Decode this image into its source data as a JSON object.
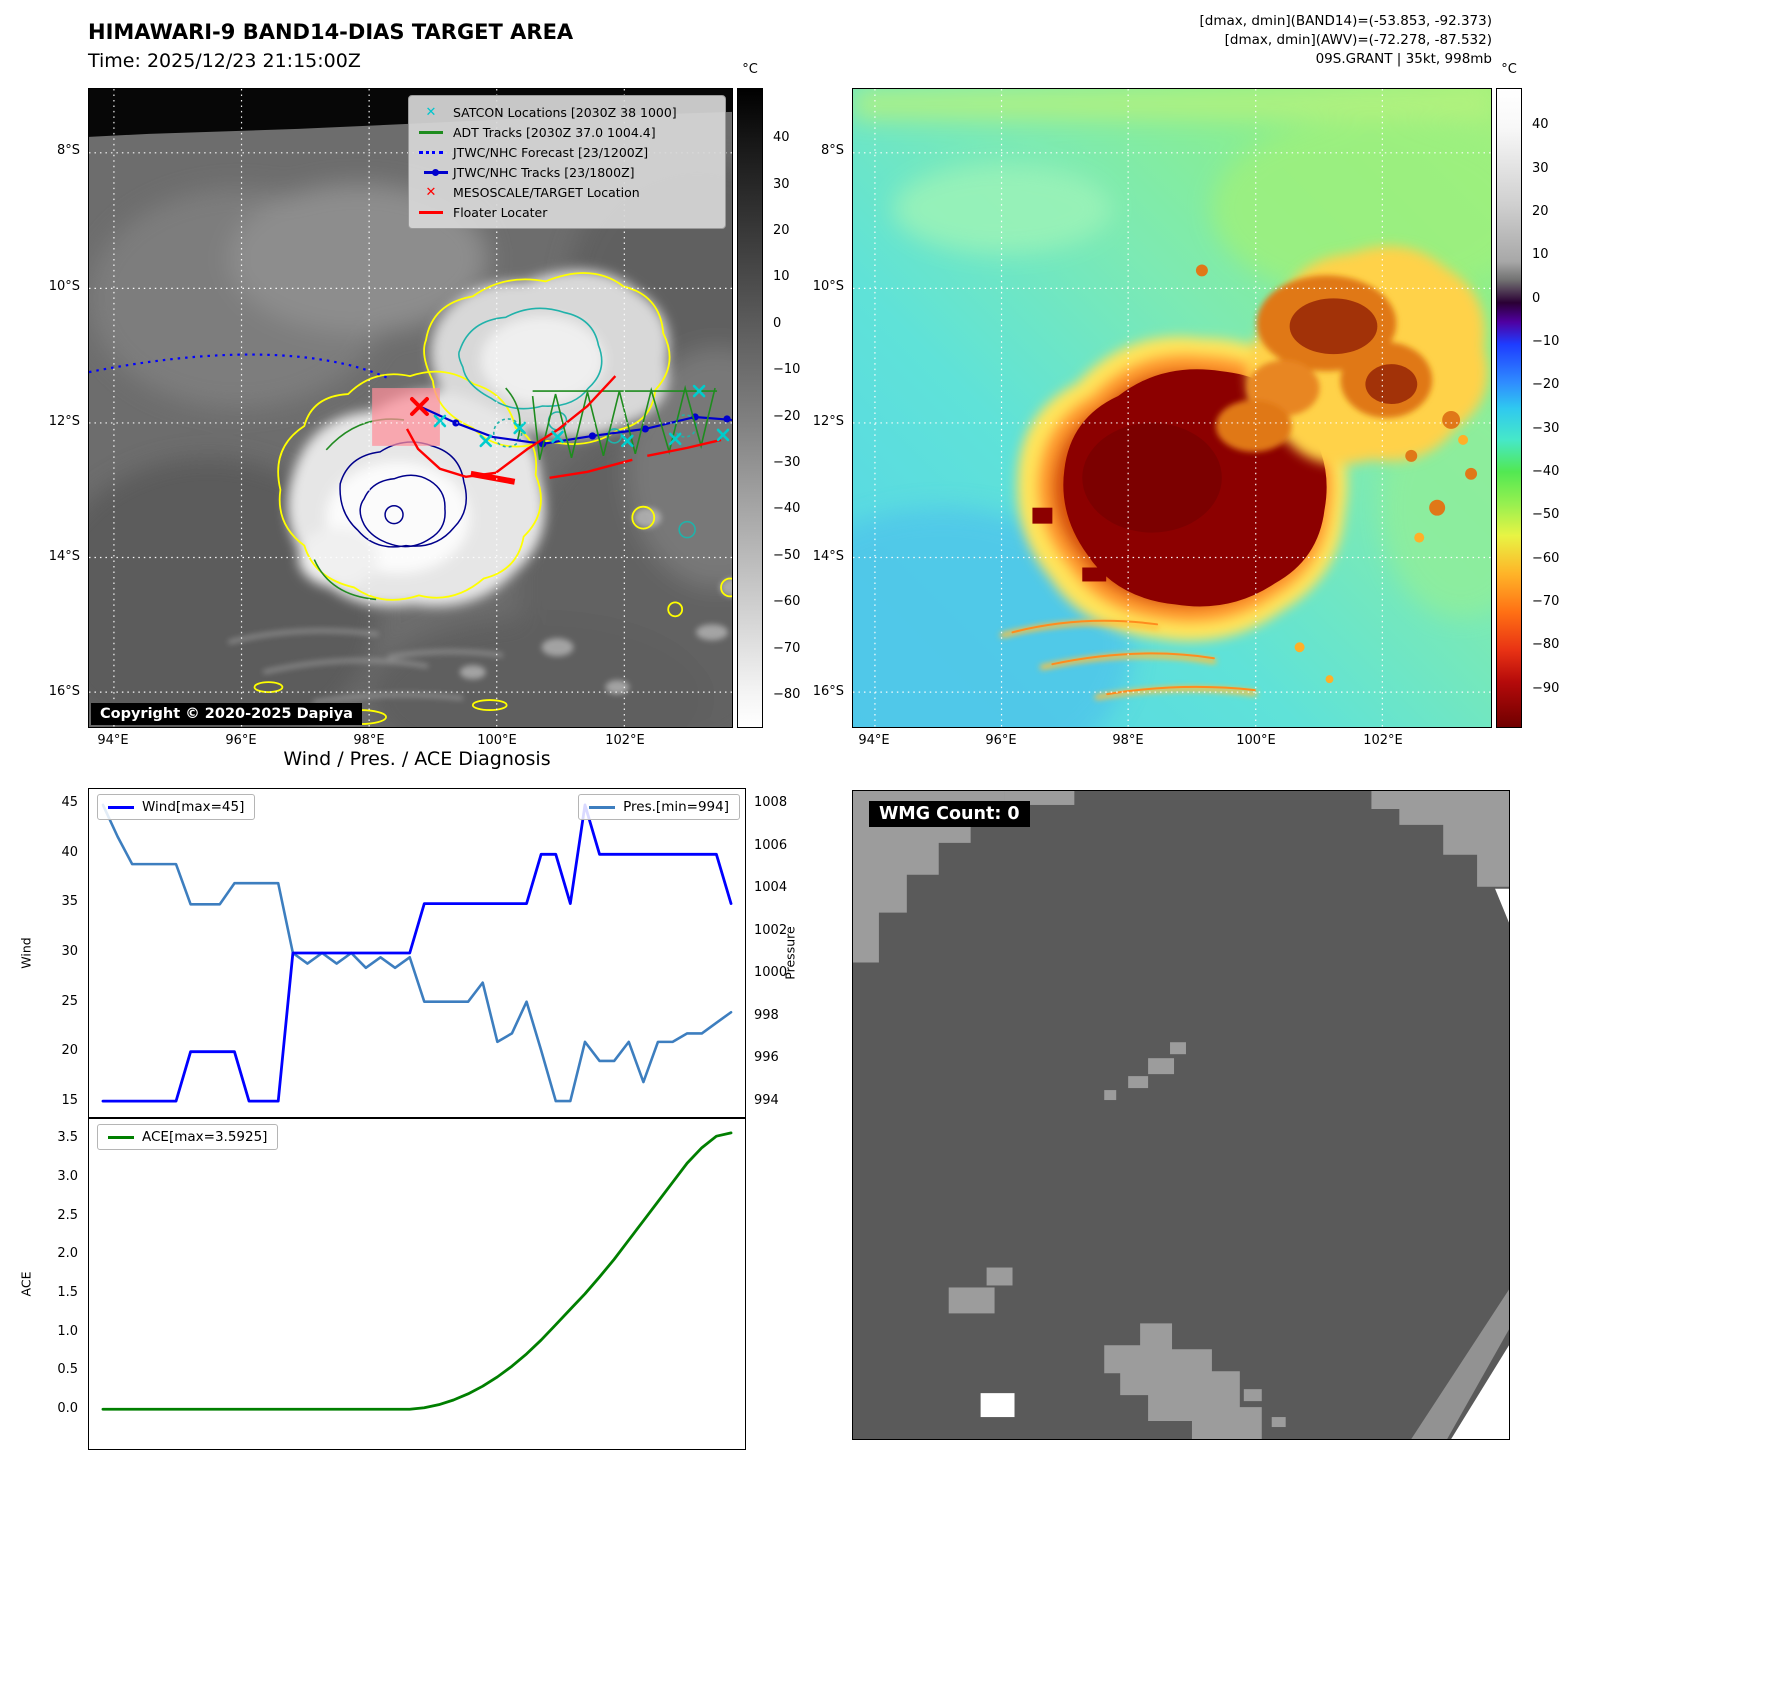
{
  "panels": {
    "band14": {
      "title": "HIMAWARI-9 BAND14-DIAS TARGET AREA",
      "time_label": "Time: 2025/12/23 21:15:00Z",
      "copyright": "Copyright © 2020-2025 Dapiya",
      "legend": [
        {
          "marker": "x",
          "color": "#00c5cd",
          "label": "SATCON Locations [2030Z 38 1000]"
        },
        {
          "marker": "line",
          "color": "#1e8c1e",
          "label": "ADT Tracks [2030Z 37.0 1004.4]"
        },
        {
          "marker": "dotted",
          "color": "#0000ff",
          "label": "JTWC/NHC Forecast [23/1200Z]"
        },
        {
          "marker": "line-dot",
          "color": "#0000cd",
          "label": "JTWC/NHC Tracks [23/1800Z]"
        },
        {
          "marker": "x",
          "color": "#ff0000",
          "label": "MESOSCALE/TARGET Location"
        },
        {
          "marker": "line",
          "color": "#ff0000",
          "label": "Floater Locater"
        }
      ],
      "lat_ticks": [
        "8°S",
        "10°S",
        "12°S",
        "14°S",
        "16°S"
      ],
      "lon_ticks": [
        "94°E",
        "96°E",
        "98°E",
        "100°E",
        "102°E"
      ],
      "colorbar": {
        "unit": "°C",
        "ticks": [
          40,
          30,
          20,
          10,
          0,
          -10,
          -20,
          -30,
          -40,
          -50,
          -60,
          -70,
          -80
        ]
      }
    },
    "awv": {
      "header_lines": [
        "[dmax, dmin](BAND14)=(-53.853, -92.373)",
        "[dmax, dmin](AWV)=(-72.278, -87.532)",
        "09S.GRANT | 35kt, 998mb"
      ],
      "lat_ticks": [
        "8°S",
        "10°S",
        "12°S",
        "14°S",
        "16°S"
      ],
      "lon_ticks": [
        "94°E",
        "96°E",
        "98°E",
        "100°E",
        "102°E"
      ],
      "colorbar": {
        "unit": "°C",
        "ticks": [
          40,
          30,
          20,
          10,
          0,
          -10,
          -20,
          -30,
          -40,
          -50,
          -60,
          -70,
          -80,
          -90
        ]
      }
    },
    "diagnosis": {
      "title": "Wind / Pres. / ACE Diagnosis",
      "wind_legend": "Wind[max=45]",
      "pres_legend": "Pres.[min=994]",
      "ace_legend": "ACE[max=3.5925]",
      "wind_ylabel": "Wind",
      "pres_ylabel": "Pressure",
      "ace_ylabel": "ACE",
      "wind_ticks": [
        45,
        40,
        35,
        30,
        25,
        20,
        15
      ],
      "pres_ticks": [
        1008,
        1006,
        1004,
        1002,
        1000,
        998,
        996,
        994
      ],
      "ace_ticks": [
        "3.5",
        "3.0",
        "2.5",
        "2.0",
        "1.5",
        "1.0",
        "0.5",
        "0.0"
      ]
    },
    "wmg": {
      "count_label": "WMG Count: 0"
    }
  },
  "chart_data": [
    {
      "type": "line",
      "title": "Wind / Pres. / ACE Diagnosis",
      "series": [
        {
          "name": "Wind[max=45]",
          "axis": "left",
          "color": "#0000ff",
          "values": [
            15,
            15,
            15,
            15,
            15,
            15,
            20,
            20,
            20,
            20,
            15,
            15,
            15,
            30,
            30,
            30,
            30,
            30,
            30,
            30,
            30,
            30,
            35,
            35,
            35,
            35,
            35,
            35,
            35,
            35,
            40,
            40,
            35,
            45,
            40,
            40,
            40,
            40,
            40,
            40,
            40,
            40,
            40,
            35
          ]
        },
        {
          "name": "Pres.[min=994]",
          "axis": "right",
          "color": "#3d7ebf",
          "values": [
            1008,
            1006.5,
            1005.2,
            1005.2,
            1005.2,
            1005.2,
            1003.3,
            1003.3,
            1003.3,
            1004.3,
            1004.3,
            1004.3,
            1004.3,
            1001,
            1000.5,
            1001,
            1000.5,
            1001,
            1000.3,
            1000.8,
            1000.3,
            1000.8,
            998.7,
            998.7,
            998.7,
            998.7,
            999.6,
            996.8,
            997.2,
            998.7,
            996.4,
            994,
            994,
            996.8,
            995.9,
            995.9,
            996.8,
            994.9,
            996.8,
            996.8,
            997.2,
            997.2,
            997.7,
            998.2
          ]
        }
      ],
      "ylabel_left": "Wind",
      "ylim_left": [
        15,
        45
      ],
      "ylabel_right": "Pressure",
      "ylim_right": [
        994,
        1008
      ],
      "grid": false,
      "legend_position": "top"
    },
    {
      "type": "line",
      "series": [
        {
          "name": "ACE[max=3.5925]",
          "color": "#007f00",
          "values": [
            0,
            0,
            0,
            0,
            0,
            0,
            0,
            0,
            0,
            0,
            0,
            0,
            0,
            0,
            0,
            0,
            0,
            0,
            0,
            0,
            0,
            0,
            0.02,
            0.06,
            0.12,
            0.2,
            0.3,
            0.42,
            0.56,
            0.72,
            0.9,
            1.1,
            1.3,
            1.5,
            1.72,
            1.95,
            2.2,
            2.45,
            2.7,
            2.95,
            3.2,
            3.4,
            3.55,
            3.5925
          ]
        }
      ],
      "ylabel": "ACE",
      "ylim": [
        0,
        3.5925
      ],
      "grid": false,
      "legend_position": "upper left"
    }
  ]
}
